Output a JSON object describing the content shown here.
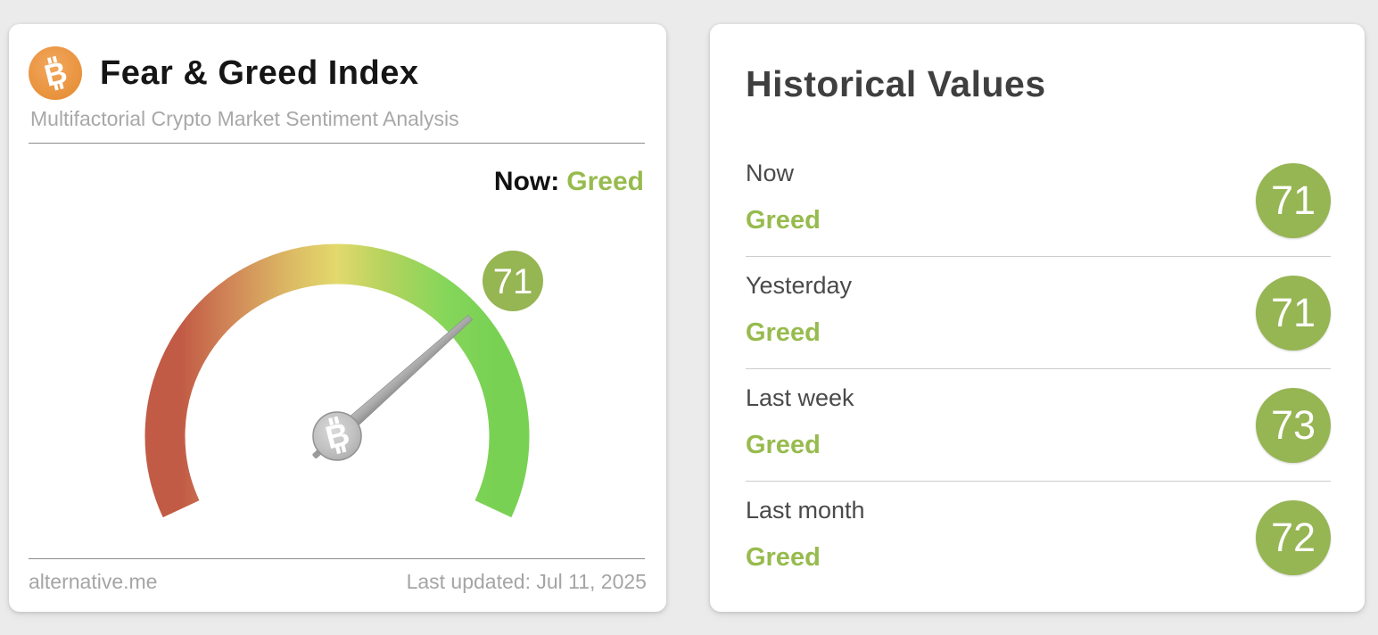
{
  "fear_greed_card": {
    "title": "Fear & Greed Index",
    "subtitle": "Multifactorial Crypto Market Sentiment Analysis",
    "now_label": "Now:",
    "now_classification": "Greed",
    "source_link": "alternative.me",
    "last_updated": "Last updated: Jul 11, 2025"
  },
  "historical_card": {
    "title": "Historical Values"
  },
  "chart_data": {
    "type": "gauge",
    "title": "Fear & Greed Index",
    "value": 71,
    "min": 0,
    "max": 100,
    "classification": "Greed",
    "gauge_sweep_deg": 230,
    "gauge_color_scale": [
      "#c25b45",
      "#d08457",
      "#dcba64",
      "#e2d96c",
      "#b5d35e",
      "#85d65a",
      "#79d154"
    ],
    "needle_color": "#a2a2a2",
    "historical": [
      {
        "label": "Now",
        "classification": "Greed",
        "value": 71
      },
      {
        "label": "Yesterday",
        "classification": "Greed",
        "value": 71
      },
      {
        "label": "Last week",
        "classification": "Greed",
        "value": 73
      },
      {
        "label": "Last month",
        "classification": "Greed",
        "value": 72
      }
    ]
  },
  "icons": {
    "header_icon": "bitcoin-icon",
    "needle_hub_icon": "bitcoin-icon"
  },
  "colors": {
    "greed_text_green": "#97bb4e",
    "value_badge_green": "#96b553",
    "bitcoin_orange": "#ec9a48",
    "page_background": "#ebebeb"
  }
}
